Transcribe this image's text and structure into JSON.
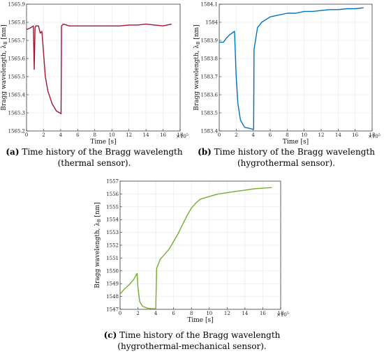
{
  "panels": [
    {
      "id": "a",
      "caption_letter": "(a)",
      "caption_line1": " Time history of the Bragg wavelength",
      "caption_line2": "(thermal sensor).",
      "ylabel": "Bragg wavelength, λ",
      "ylabel_sub": "B",
      "ylabel_unit": " [nm]",
      "xlabel": "Time [s]",
      "x_multiplier": "×10",
      "x_multiplier_exp": "5"
    },
    {
      "id": "b",
      "caption_letter": "(b)",
      "caption_line1": " Time history of the Bragg wavelength",
      "caption_line2": "(hygrothermal sensor).",
      "ylabel": "Bragg wavelength, λ",
      "ylabel_sub": "B",
      "ylabel_unit": " [nm]",
      "xlabel": "Time [s]",
      "x_multiplier": "×10",
      "x_multiplier_exp": "5"
    },
    {
      "id": "c",
      "caption_letter": "(c)",
      "caption_line1": " Time history of the Bragg wavelength",
      "caption_line2": "(hygrothermal-mechanical sensor).",
      "ylabel": "Bragg wavelength, λ",
      "ylabel_sub": "B",
      "ylabel_unit": " [nm]",
      "xlabel": "Time [s]",
      "x_multiplier": "×10",
      "x_multiplier_exp": "5"
    }
  ],
  "chart_data": [
    {
      "type": "line",
      "panel": "a",
      "color": "#a2142f",
      "xlim": [
        0,
        18
      ],
      "ylim": [
        1565.2,
        1565.9
      ],
      "xticks": [
        0,
        2,
        4,
        6,
        8,
        10,
        12,
        14,
        16,
        18
      ],
      "yticks": [
        1565.2,
        1565.3,
        1565.4,
        1565.5,
        1565.6,
        1565.7,
        1565.8,
        1565.9
      ],
      "x_scale_note": "x values in units of 1e5 s",
      "series": [
        {
          "x": [
            0,
            0.5,
            0.8,
            0.9,
            1.0,
            1.1,
            1.4,
            1.6,
            1.8,
            2.0,
            2.2,
            2.5,
            3.0,
            3.5,
            3.9,
            4.05,
            4.1,
            4.3,
            5,
            6,
            7,
            8,
            9,
            10,
            11,
            12,
            13,
            14,
            15,
            16,
            17
          ],
          "y": [
            1565.76,
            1565.77,
            1565.78,
            1565.54,
            1565.77,
            1565.78,
            1565.78,
            1565.74,
            1565.75,
            1565.63,
            1565.5,
            1565.42,
            1565.35,
            1565.31,
            1565.3,
            1565.295,
            1565.78,
            1565.79,
            1565.78,
            1565.78,
            1565.78,
            1565.78,
            1565.78,
            1565.78,
            1565.78,
            1565.785,
            1565.785,
            1565.79,
            1565.785,
            1565.78,
            1565.79
          ]
        }
      ]
    },
    {
      "type": "line",
      "panel": "b",
      "color": "#0072bd",
      "xlim": [
        0,
        18
      ],
      "ylim": [
        1583.4,
        1584.1
      ],
      "xticks": [
        0,
        2,
        4,
        6,
        8,
        10,
        12,
        14,
        16,
        18
      ],
      "yticks": [
        1583.4,
        1583.5,
        1583.6,
        1583.7,
        1583.8,
        1583.9,
        1584,
        1584.1
      ],
      "x_scale_note": "x values in units of 1e5 s",
      "series": [
        {
          "x": [
            0,
            0.5,
            0.8,
            1.0,
            1.2,
            1.5,
            1.8,
            2.0,
            2.2,
            2.5,
            3.0,
            3.5,
            3.9,
            4.05,
            4.1,
            4.5,
            5,
            6,
            7,
            8,
            9,
            10,
            11,
            12,
            13,
            14,
            15,
            16,
            17
          ],
          "y": [
            1583.89,
            1583.89,
            1583.91,
            1583.92,
            1583.93,
            1583.94,
            1583.95,
            1583.7,
            1583.55,
            1583.46,
            1583.42,
            1583.415,
            1583.41,
            1583.41,
            1583.85,
            1583.97,
            1584.0,
            1584.03,
            1584.04,
            1584.05,
            1584.05,
            1584.06,
            1584.06,
            1584.065,
            1584.07,
            1584.07,
            1584.075,
            1584.075,
            1584.08
          ]
        }
      ]
    },
    {
      "type": "line",
      "panel": "c",
      "color": "#77ac30",
      "xlim": [
        0,
        18
      ],
      "ylim": [
        1547,
        1557
      ],
      "xticks": [
        0,
        2,
        4,
        6,
        8,
        10,
        12,
        14,
        16,
        18
      ],
      "yticks": [
        1547,
        1548,
        1549,
        1550,
        1551,
        1552,
        1553,
        1554,
        1555,
        1556,
        1557
      ],
      "x_scale_note": "x values in units of 1e5 s",
      "series": [
        {
          "x": [
            0,
            0.5,
            1.0,
            1.5,
            1.9,
            2.0,
            2.2,
            2.5,
            3.0,
            3.5,
            3.9,
            4.0,
            4.1,
            4.5,
            5,
            5.5,
            6,
            6.5,
            7,
            7.5,
            8,
            8.5,
            9,
            10,
            11,
            12,
            13,
            14,
            15,
            16,
            17
          ],
          "y": [
            1548.2,
            1548.6,
            1548.9,
            1549.3,
            1549.8,
            1548.7,
            1547.6,
            1547.25,
            1547.1,
            1547.05,
            1547.05,
            1547.05,
            1550.2,
            1550.9,
            1551.3,
            1551.7,
            1552.3,
            1552.9,
            1553.6,
            1554.3,
            1554.9,
            1555.3,
            1555.6,
            1555.8,
            1556.0,
            1556.1,
            1556.2,
            1556.3,
            1556.4,
            1556.45,
            1556.5
          ]
        }
      ]
    }
  ]
}
